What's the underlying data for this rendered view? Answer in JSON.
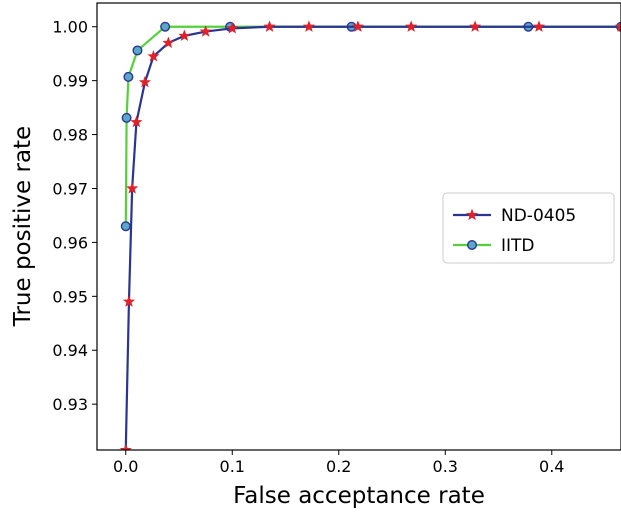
{
  "chart_data": {
    "type": "line",
    "xlabel": "False acceptance rate",
    "ylabel": "True positive rate",
    "xlim": [
      -0.027,
      0.465
    ],
    "ylim": [
      0.9215,
      1.0044
    ],
    "x_ticks": [
      0.0,
      0.1,
      0.2,
      0.3,
      0.4
    ],
    "x_tick_labels": [
      "0.0",
      "0.1",
      "0.2",
      "0.3",
      "0.4"
    ],
    "y_ticks": [
      0.93,
      0.94,
      0.95,
      0.96,
      0.97,
      0.98,
      0.99,
      1.0
    ],
    "y_tick_labels": [
      "0.93",
      "0.94",
      "0.95",
      "0.96",
      "0.97",
      "0.98",
      "0.99",
      "1.00"
    ],
    "grid": false,
    "legend_position": "center-right",
    "series": [
      {
        "name": "ND-0405",
        "line_color": "#2a3593",
        "marker": "star",
        "marker_color": "#e0202a",
        "points": [
          [
            0.0,
            0.9215
          ],
          [
            0.003,
            0.949
          ],
          [
            0.006,
            0.97
          ],
          [
            0.01,
            0.9823
          ],
          [
            0.018,
            0.9897
          ],
          [
            0.026,
            0.9945
          ],
          [
            0.04,
            0.997
          ],
          [
            0.055,
            0.9983
          ],
          [
            0.075,
            0.9991
          ],
          [
            0.1,
            0.9997
          ],
          [
            0.135,
            1.0
          ],
          [
            0.172,
            1.0
          ],
          [
            0.218,
            1.0
          ],
          [
            0.268,
            1.0
          ],
          [
            0.328,
            1.0
          ],
          [
            0.388,
            1.0
          ],
          [
            0.465,
            1.0
          ]
        ]
      },
      {
        "name": "IITD",
        "line_color": "#54d13a",
        "marker": "circle",
        "marker_color": "#5aa8c8",
        "points": [
          [
            0.0,
            0.963
          ],
          [
            0.0008,
            0.9831
          ],
          [
            0.0025,
            0.9907
          ],
          [
            0.011,
            0.9956
          ],
          [
            0.037,
            1.0
          ],
          [
            0.098,
            1.0
          ],
          [
            0.212,
            1.0
          ],
          [
            0.378,
            1.0
          ],
          [
            0.465,
            1.0
          ]
        ]
      }
    ]
  }
}
